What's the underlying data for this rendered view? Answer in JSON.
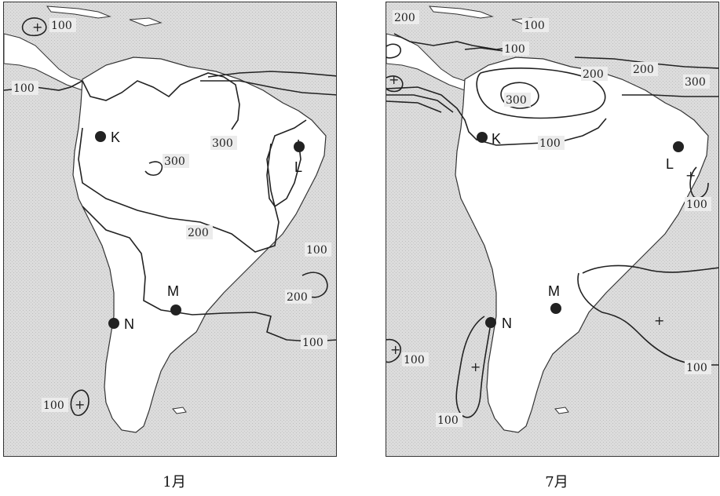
{
  "maps": {
    "jan": {
      "caption": "1月",
      "isolines": [
        "100",
        "100",
        "300",
        "300",
        "200",
        "100",
        "200",
        "100",
        "100"
      ],
      "cities": [
        "K",
        "L",
        "M",
        "N"
      ]
    },
    "jul": {
      "caption": "7月",
      "isolines": [
        "200",
        "100",
        "100",
        "200",
        "200",
        "300",
        "300",
        "100",
        "100",
        "100",
        "100",
        "100"
      ],
      "cities": [
        "K",
        "L",
        "M",
        "N"
      ]
    }
  },
  "colors": {
    "sea": "#d9d9d9",
    "land": "#ffffff",
    "isoline": "#222222",
    "city_marker": "#222222"
  },
  "symbols": {
    "high_center": "+"
  }
}
